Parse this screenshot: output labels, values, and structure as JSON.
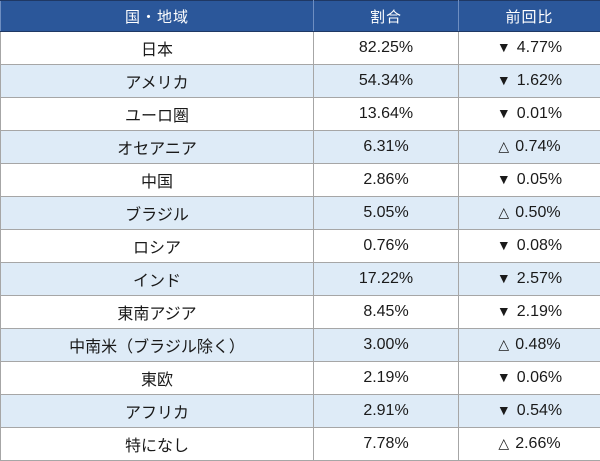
{
  "chart_data": {
    "type": "table",
    "title": "",
    "columns": [
      "国・地域",
      "割合",
      "前回比"
    ],
    "legend": {
      "down_symbol": "▼",
      "up_symbol": "△"
    },
    "rows": [
      {
        "region": "日本",
        "share": "82.25%",
        "change_direction": "down",
        "change_symbol": "▼",
        "change_value": "4.77%"
      },
      {
        "region": "アメリカ",
        "share": "54.34%",
        "change_direction": "down",
        "change_symbol": "▼",
        "change_value": "1.62%"
      },
      {
        "region": "ユーロ圏",
        "share": "13.64%",
        "change_direction": "down",
        "change_symbol": "▼",
        "change_value": "0.01%"
      },
      {
        "region": "オセアニア",
        "share": "6.31%",
        "change_direction": "up",
        "change_symbol": "△",
        "change_value": "0.74%"
      },
      {
        "region": "中国",
        "share": "2.86%",
        "change_direction": "down",
        "change_symbol": "▼",
        "change_value": "0.05%"
      },
      {
        "region": "ブラジル",
        "share": "5.05%",
        "change_direction": "up",
        "change_symbol": "△",
        "change_value": "0.50%"
      },
      {
        "region": "ロシア",
        "share": "0.76%",
        "change_direction": "down",
        "change_symbol": "▼",
        "change_value": "0.08%"
      },
      {
        "region": "インド",
        "share": "17.22%",
        "change_direction": "down",
        "change_symbol": "▼",
        "change_value": "2.57%"
      },
      {
        "region": "東南アジア",
        "share": "8.45%",
        "change_direction": "down",
        "change_symbol": "▼",
        "change_value": "2.19%"
      },
      {
        "region": "中南米（ブラジル除く）",
        "share": "3.00%",
        "change_direction": "up",
        "change_symbol": "△",
        "change_value": "0.48%"
      },
      {
        "region": "東欧",
        "share": "2.19%",
        "change_direction": "down",
        "change_symbol": "▼",
        "change_value": "0.06%"
      },
      {
        "region": "アフリカ",
        "share": "2.91%",
        "change_direction": "down",
        "change_symbol": "▼",
        "change_value": "0.54%"
      },
      {
        "region": "特になし",
        "share": "7.78%",
        "change_direction": "up",
        "change_symbol": "△",
        "change_value": "2.66%"
      }
    ]
  },
  "colors": {
    "header_bg": "#2B579A",
    "header_text": "#FFFFFF",
    "alt_row_bg": "#DEEBF7",
    "grid_line": "#A6A6A6",
    "outer_border": "#1F3864"
  }
}
